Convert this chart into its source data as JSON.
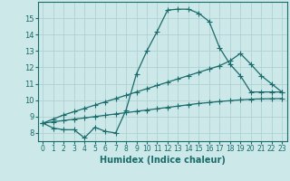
{
  "line1_x": [
    0,
    1,
    2,
    3,
    4,
    5,
    6,
    7,
    8,
    9,
    10,
    11,
    12,
    13,
    14,
    15,
    16,
    17,
    18,
    19,
    20,
    21,
    22,
    23
  ],
  "line1_y": [
    8.6,
    8.3,
    8.2,
    8.2,
    7.7,
    8.35,
    8.1,
    8.0,
    9.4,
    11.6,
    13.0,
    14.2,
    15.5,
    15.55,
    15.55,
    15.3,
    14.8,
    13.2,
    12.2,
    11.5,
    10.5,
    10.5,
    10.5,
    10.5
  ],
  "line2_x": [
    0,
    1,
    2,
    3,
    4,
    5,
    6,
    7,
    8,
    9,
    10,
    11,
    12,
    13,
    14,
    15,
    16,
    17,
    18,
    19,
    20,
    21,
    22,
    23
  ],
  "line2_y": [
    8.6,
    8.85,
    9.1,
    9.3,
    9.5,
    9.7,
    9.9,
    10.1,
    10.3,
    10.5,
    10.7,
    10.9,
    11.1,
    11.3,
    11.5,
    11.7,
    11.9,
    12.1,
    12.4,
    12.85,
    12.2,
    11.5,
    11.0,
    10.5
  ],
  "line3_x": [
    0,
    1,
    2,
    3,
    4,
    5,
    6,
    7,
    8,
    9,
    10,
    11,
    12,
    13,
    14,
    15,
    16,
    17,
    18,
    19,
    20,
    21,
    22,
    23
  ],
  "line3_y": [
    8.6,
    8.68,
    8.76,
    8.84,
    8.92,
    9.0,
    9.08,
    9.16,
    9.24,
    9.32,
    9.4,
    9.48,
    9.56,
    9.64,
    9.72,
    9.8,
    9.86,
    9.92,
    9.97,
    10.02,
    10.06,
    10.08,
    10.09,
    10.1
  ],
  "line_color": "#1a6b6b",
  "bg_color": "#cce8e8",
  "grid_color": "#aacece",
  "xlabel": "Humidex (Indice chaleur)",
  "ylim": [
    7.5,
    16.0
  ],
  "xlim": [
    -0.5,
    23.5
  ],
  "yticks": [
    8,
    9,
    10,
    11,
    12,
    13,
    14,
    15
  ],
  "xticks": [
    0,
    1,
    2,
    3,
    4,
    5,
    6,
    7,
    8,
    9,
    10,
    11,
    12,
    13,
    14,
    15,
    16,
    17,
    18,
    19,
    20,
    21,
    22,
    23
  ]
}
